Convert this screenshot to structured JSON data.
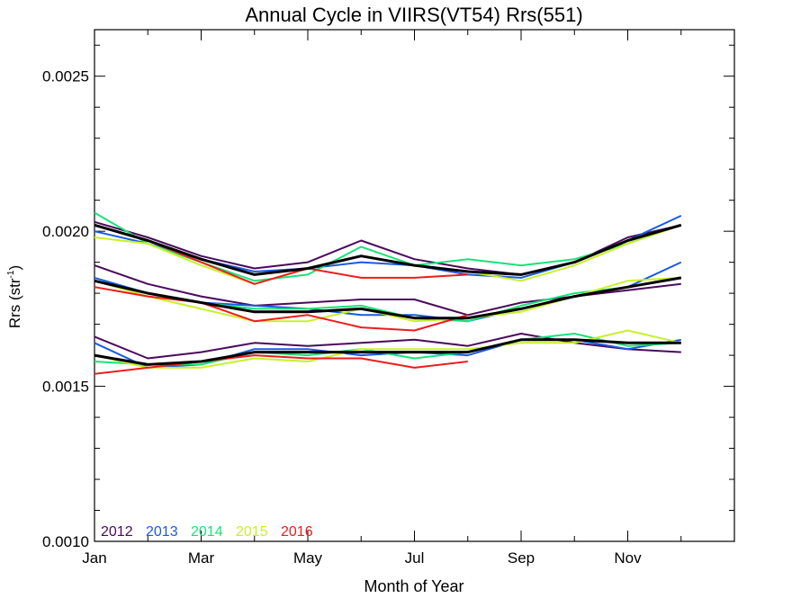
{
  "chart_data": {
    "type": "line",
    "title": "Annual Cycle in VIIRS(VT54) Rrs(551)",
    "xlabel": "Month of Year",
    "ylabel_main": "Rrs (str",
    "ylabel_sup": "-1",
    "ylabel_close": ")",
    "xlim": [
      1,
      13
    ],
    "ylim": [
      0.001,
      0.00265
    ],
    "x_ticks": [
      {
        "x": 1,
        "label": "Jan"
      },
      {
        "x": 3,
        "label": "Mar"
      },
      {
        "x": 5,
        "label": "May"
      },
      {
        "x": 7,
        "label": "Jul"
      },
      {
        "x": 9,
        "label": "Sep"
      },
      {
        "x": 11,
        "label": "Nov"
      }
    ],
    "y_ticks": [
      {
        "y": 0.001,
        "label": "0.0010"
      },
      {
        "y": 0.0015,
        "label": "0.0015"
      },
      {
        "y": 0.002,
        "label": "0.0020"
      },
      {
        "y": 0.0025,
        "label": "0.0025"
      }
    ],
    "legend_placement": "bottom-left",
    "series": [
      {
        "name": "2012",
        "color": "#4a0a5c",
        "segments": [
          {
            "x": [
              1,
              2,
              3,
              4,
              5,
              6,
              7,
              8,
              9,
              10,
              11,
              12
            ],
            "y": [
              0.00203,
              0.00198,
              0.00192,
              0.00188,
              0.0019,
              0.00197,
              0.00191,
              0.00188,
              0.00186,
              0.0019,
              0.00198,
              0.00202
            ]
          },
          {
            "x": [
              1,
              2,
              3,
              4,
              5,
              6,
              7,
              8,
              9,
              10,
              11,
              12
            ],
            "y": [
              0.00189,
              0.00183,
              0.00179,
              0.00176,
              0.00177,
              0.00178,
              0.00178,
              0.00173,
              0.00177,
              0.00179,
              0.00181,
              0.00183
            ]
          },
          {
            "x": [
              1,
              2,
              3,
              4,
              5,
              6,
              7,
              8,
              9,
              10,
              11,
              12
            ],
            "y": [
              0.00166,
              0.00159,
              0.00161,
              0.00164,
              0.00163,
              0.00164,
              0.00165,
              0.00163,
              0.00167,
              0.00164,
              0.00162,
              0.00161
            ]
          }
        ]
      },
      {
        "name": "2013",
        "color": "#1a5ae0",
        "segments": [
          {
            "x": [
              1,
              2,
              3,
              4,
              5,
              6,
              7,
              8,
              9,
              10,
              11,
              12
            ],
            "y": [
              0.002,
              0.00196,
              0.00191,
              0.00187,
              0.00188,
              0.0019,
              0.00189,
              0.00186,
              0.00185,
              0.0019,
              0.00197,
              0.00205
            ]
          },
          {
            "x": [
              1,
              2,
              3,
              4,
              5,
              6,
              7,
              8,
              9,
              10,
              11,
              12
            ],
            "y": [
              0.00185,
              0.0018,
              0.00177,
              0.00176,
              0.00175,
              0.00173,
              0.00173,
              0.00171,
              0.00175,
              0.00179,
              0.00182,
              0.0019
            ]
          },
          {
            "x": [
              1,
              2,
              3,
              4,
              5,
              6,
              7,
              8,
              9,
              10,
              11,
              12
            ],
            "y": [
              0.00164,
              0.00156,
              0.00157,
              0.00162,
              0.00162,
              0.0016,
              0.00161,
              0.0016,
              0.00165,
              0.00165,
              0.00162,
              0.00165
            ]
          }
        ]
      },
      {
        "name": "2014",
        "color": "#18e27a",
        "segments": [
          {
            "x": [
              1,
              2,
              3,
              4,
              5,
              6,
              7,
              8,
              9,
              10,
              11,
              12
            ],
            "y": [
              0.00206,
              0.00196,
              0.0019,
              0.00184,
              0.00186,
              0.00195,
              0.00189,
              0.00191,
              0.00189,
              0.00191,
              0.00196,
              0.00202
            ]
          },
          {
            "x": [
              1,
              2,
              3,
              4,
              5,
              6,
              7,
              8,
              9,
              10,
              11,
              12
            ],
            "y": [
              0.00184,
              0.0018,
              0.00177,
              0.00175,
              0.00175,
              0.00176,
              0.00172,
              0.00171,
              0.00176,
              0.0018,
              0.00182,
              0.00185
            ]
          },
          {
            "x": [
              1,
              2,
              3,
              4,
              5,
              6,
              7,
              8,
              9,
              10,
              11,
              12
            ],
            "y": [
              0.00158,
              0.00157,
              0.00157,
              0.00161,
              0.0016,
              0.00162,
              0.00159,
              0.00161,
              0.00165,
              0.00167,
              0.00163,
              0.00164
            ]
          }
        ]
      },
      {
        "name": "2015",
        "color": "#c8f02a",
        "segments": [
          {
            "x": [
              1,
              2,
              3,
              4,
              5,
              6,
              7,
              8,
              9,
              10,
              11,
              12
            ],
            "y": [
              0.00198,
              0.00196,
              0.00189,
              0.00183,
              0.00188,
              0.00192,
              0.00189,
              0.00187,
              0.00184,
              0.00189,
              0.00196,
              0.00202
            ]
          },
          {
            "x": [
              1,
              2,
              3,
              4,
              5,
              6,
              7,
              8,
              9,
              10,
              11,
              12
            ],
            "y": [
              0.00184,
              0.00179,
              0.00175,
              0.00171,
              0.00171,
              0.00175,
              0.00171,
              0.00172,
              0.00174,
              0.00179,
              0.00184,
              0.00185
            ]
          },
          {
            "x": [
              1,
              2,
              3,
              4,
              5,
              6,
              7,
              8,
              9,
              10,
              11,
              12
            ],
            "y": [
              0.0016,
              0.00156,
              0.00156,
              0.00159,
              0.00158,
              0.00162,
              0.00162,
              0.00162,
              0.00164,
              0.00164,
              0.00168,
              0.00164
            ]
          }
        ]
      },
      {
        "name": "2016",
        "color": "#ee1c1c",
        "segments": [
          {
            "x": [
              1,
              2,
              3,
              4,
              5,
              6,
              7,
              8
            ],
            "y": [
              0.00202,
              0.00197,
              0.0019,
              0.00183,
              0.00188,
              0.00185,
              0.00185,
              0.00186
            ]
          },
          {
            "x": [
              1,
              2,
              3,
              4,
              5,
              6,
              7,
              8
            ],
            "y": [
              0.00182,
              0.00179,
              0.00177,
              0.00171,
              0.00173,
              0.00169,
              0.00168,
              0.00173
            ]
          },
          {
            "x": [
              1,
              2,
              3,
              4,
              5,
              6,
              7,
              8
            ],
            "y": [
              0.00154,
              0.00156,
              0.00158,
              0.0016,
              0.00159,
              0.00159,
              0.00156,
              0.00158
            ]
          }
        ]
      },
      {
        "name": "",
        "color": "#000000",
        "thick": true,
        "segments": [
          {
            "x": [
              1,
              2,
              3,
              4,
              5,
              6,
              7,
              8,
              9,
              10,
              11,
              12
            ],
            "y": [
              0.00202,
              0.00197,
              0.00191,
              0.00186,
              0.00188,
              0.00192,
              0.00189,
              0.00187,
              0.00186,
              0.0019,
              0.00197,
              0.00202
            ]
          },
          {
            "x": [
              1,
              2,
              3,
              4,
              5,
              6,
              7,
              8,
              9,
              10,
              11,
              12
            ],
            "y": [
              0.00184,
              0.0018,
              0.00177,
              0.00174,
              0.00174,
              0.00175,
              0.00172,
              0.00172,
              0.00175,
              0.00179,
              0.00182,
              0.00185
            ]
          },
          {
            "x": [
              1,
              2,
              3,
              4,
              5,
              6,
              7,
              8,
              9,
              10,
              11,
              12
            ],
            "y": [
              0.0016,
              0.00157,
              0.00158,
              0.00161,
              0.00161,
              0.00161,
              0.00161,
              0.00161,
              0.00165,
              0.00165,
              0.00164,
              0.00164
            ]
          }
        ]
      }
    ]
  }
}
